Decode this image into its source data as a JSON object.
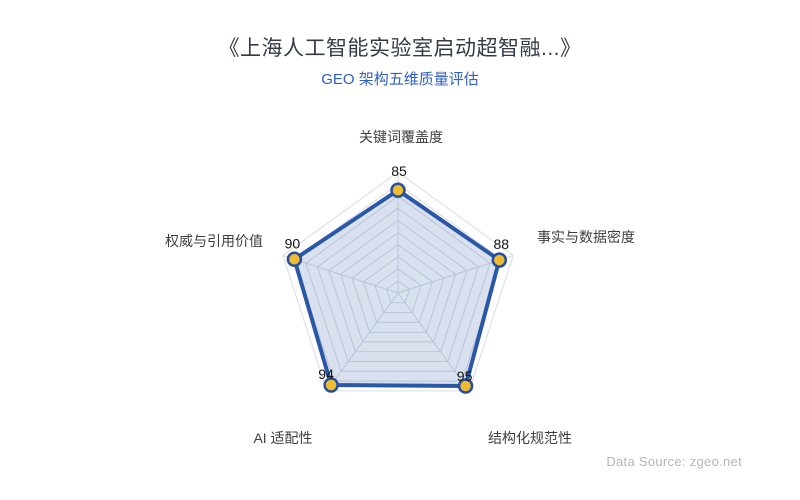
{
  "header": {
    "title": "《上海人工智能实验室启动超智融...》",
    "subtitle": "GEO 架构五维质量评估",
    "title_color": "#343a46",
    "subtitle_color": "#3060c0"
  },
  "footer": {
    "data_source": "Data Source: zgeo.net"
  },
  "chart_data": {
    "type": "radar",
    "title": "GEO 架构五维质量评估",
    "axis_min": 0,
    "axis_max": 100,
    "split_number": 10,
    "grid": "pentagon-web",
    "legend_position": "none",
    "indicators": [
      {
        "name": "关键词覆盖度",
        "max": 100,
        "value": 85
      },
      {
        "name": "事实与数据密度",
        "max": 100,
        "value": 88
      },
      {
        "name": "结构化规范性",
        "max": 100,
        "value": 95
      },
      {
        "name": "AI 适配性",
        "max": 100,
        "value": 94
      },
      {
        "name": "权威与引用价值",
        "max": 100,
        "value": 90
      }
    ],
    "series": [
      {
        "name": "GEO 架构五维质量评估",
        "values": [
          85,
          88,
          95,
          94,
          90
        ]
      }
    ],
    "colors": {
      "line": "#2b57a7",
      "area": "rgba(43,87,167,0.18)",
      "point_fill": "#eebc33",
      "point_border": "#274f9b",
      "grid_line": "#d9dbe5",
      "value_label": "#141414",
      "axis_label": "#3f3f3f"
    }
  }
}
